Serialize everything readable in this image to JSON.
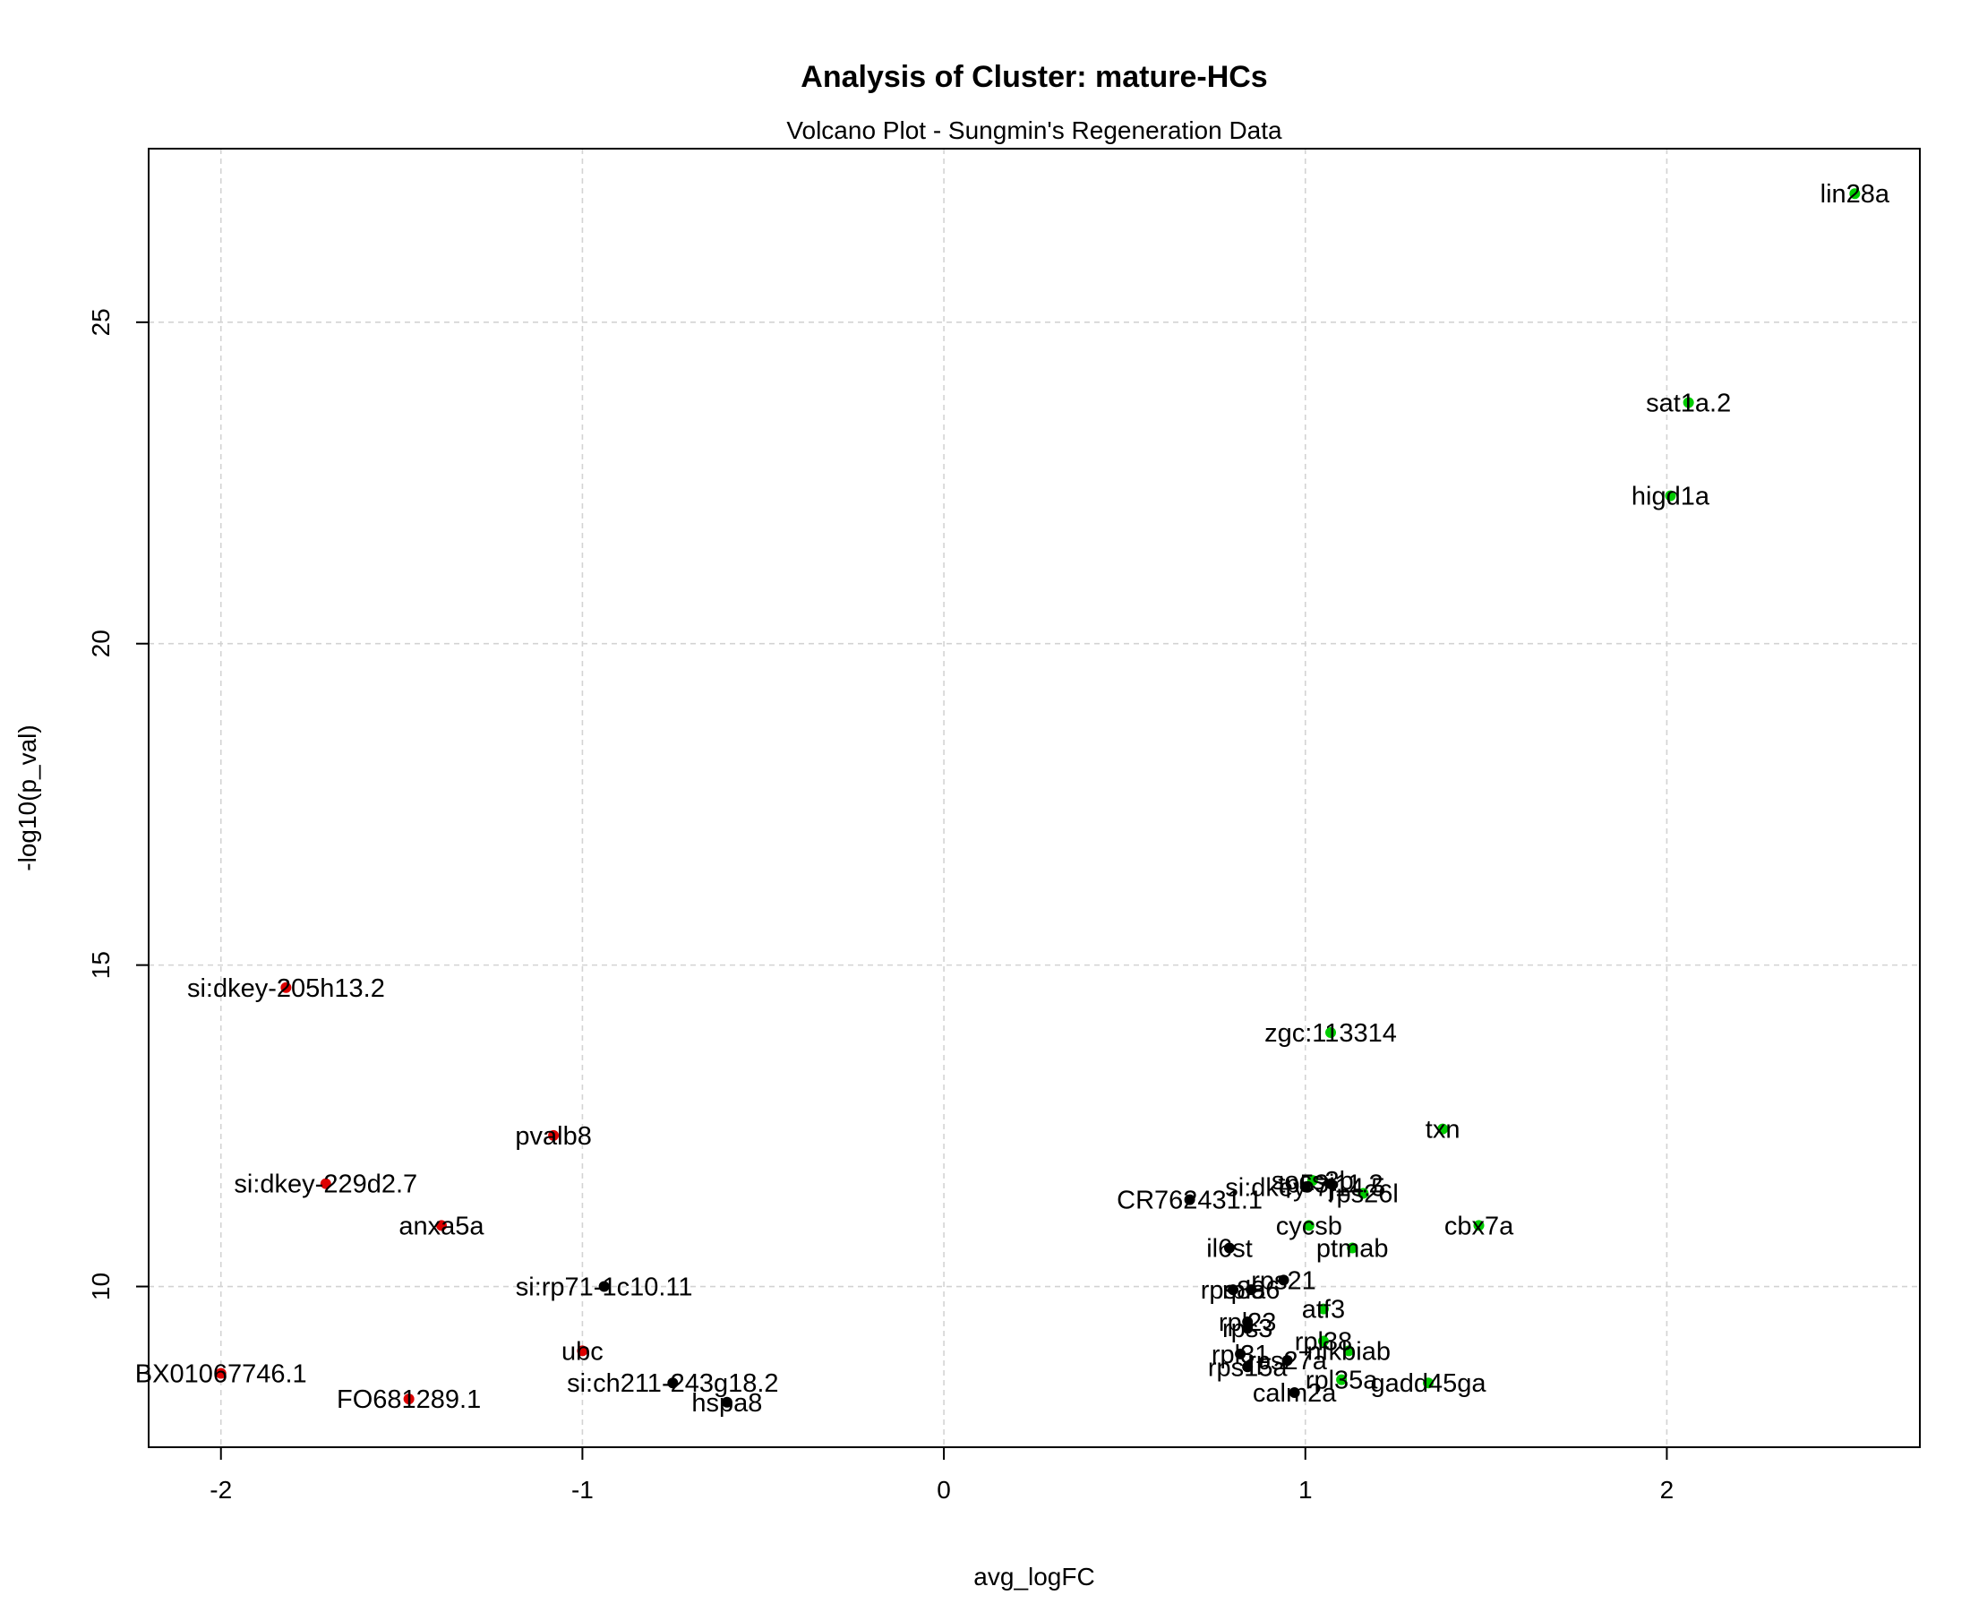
{
  "chart_data": {
    "type": "scatter",
    "title": "Analysis of Cluster: mature-HCs",
    "subtitle": "Volcano Plot - Sungmin's Regeneration Data",
    "xlabel": "avg_logFC",
    "ylabel": "-log10(p_val)",
    "xlim": [
      -2.2,
      2.7
    ],
    "ylim": [
      7.5,
      27.7
    ],
    "xticks": [
      -2,
      -1,
      0,
      1,
      2
    ],
    "yticks": [
      10,
      15,
      20,
      25
    ],
    "grid": true,
    "colors": {
      "up": "#00cc00",
      "down": "#dd0000",
      "other": "#000000"
    },
    "points": [
      {
        "label": "lin28a",
        "x": 2.52,
        "y": 27.0,
        "group": "up"
      },
      {
        "label": "sat1a.2",
        "x": 2.06,
        "y": 23.75,
        "group": "up"
      },
      {
        "label": "higd1a",
        "x": 2.01,
        "y": 22.3,
        "group": "up"
      },
      {
        "label": "zgc:113314",
        "x": 1.07,
        "y": 13.95,
        "group": "up"
      },
      {
        "label": "txn",
        "x": 1.38,
        "y": 12.45,
        "group": "up"
      },
      {
        "label": "cbx7a",
        "x": 1.48,
        "y": 10.95,
        "group": "up"
      },
      {
        "label": "cycsb",
        "x": 1.01,
        "y": 10.95,
        "group": "up"
      },
      {
        "label": "ptmab",
        "x": 1.13,
        "y": 10.6,
        "group": "up"
      },
      {
        "label": "socs3b",
        "x": 1.02,
        "y": 11.65,
        "group": "up"
      },
      {
        "label": "si:dkey-7j14.5",
        "x": 1.0,
        "y": 11.55,
        "group": "other"
      },
      {
        "label": "rps26l",
        "x": 1.16,
        "y": 11.45,
        "group": "up"
      },
      {
        "label": "tp53i11.2",
        "x": 1.07,
        "y": 11.6,
        "group": "other"
      },
      {
        "label": "CR762431.1",
        "x": 0.68,
        "y": 11.35,
        "group": "other"
      },
      {
        "label": "il6st",
        "x": 0.79,
        "y": 10.6,
        "group": "other"
      },
      {
        "label": "rps21",
        "x": 0.94,
        "y": 10.1,
        "group": "other"
      },
      {
        "label": "rpl36",
        "x": 0.85,
        "y": 9.95,
        "group": "other"
      },
      {
        "label": "rps8a",
        "x": 0.8,
        "y": 9.95,
        "group": "other"
      },
      {
        "label": "atf3",
        "x": 1.05,
        "y": 9.65,
        "group": "up"
      },
      {
        "label": "rpl23",
        "x": 0.84,
        "y": 9.45,
        "group": "other"
      },
      {
        "label": "rps3",
        "x": 0.84,
        "y": 9.35,
        "group": "other"
      },
      {
        "label": "rpl38",
        "x": 1.05,
        "y": 9.15,
        "group": "up"
      },
      {
        "label": "rpl31",
        "x": 0.82,
        "y": 8.95,
        "group": "other"
      },
      {
        "label": "rps27a",
        "x": 0.95,
        "y": 8.85,
        "group": "other"
      },
      {
        "label": "rps15a",
        "x": 0.84,
        "y": 8.75,
        "group": "other"
      },
      {
        "label": "nfkbiab",
        "x": 1.12,
        "y": 9.0,
        "group": "up"
      },
      {
        "label": "rpl35a",
        "x": 1.1,
        "y": 8.55,
        "group": "up"
      },
      {
        "label": "gadd45ga",
        "x": 1.34,
        "y": 8.5,
        "group": "up"
      },
      {
        "label": "calm2a",
        "x": 0.97,
        "y": 8.35,
        "group": "other"
      },
      {
        "label": "si:dkey-205h13.2",
        "x": -1.82,
        "y": 14.65,
        "group": "down"
      },
      {
        "label": "pvalb8",
        "x": -1.08,
        "y": 12.35,
        "group": "down"
      },
      {
        "label": "si:dkey-229d2.7",
        "x": -1.71,
        "y": 11.6,
        "group": "down"
      },
      {
        "label": "anxa5a",
        "x": -1.39,
        "y": 10.95,
        "group": "down"
      },
      {
        "label": "si:rp71-1c10.11",
        "x": -0.94,
        "y": 10.0,
        "group": "other"
      },
      {
        "label": "ubc",
        "x": -1.0,
        "y": 9.0,
        "group": "down"
      },
      {
        "label": "BX01067746.1",
        "x": -2.0,
        "y": 8.65,
        "group": "down"
      },
      {
        "label": "si:ch211-243g18.2",
        "x": -0.75,
        "y": 8.5,
        "group": "other"
      },
      {
        "label": "FO681289.1",
        "x": -1.48,
        "y": 8.25,
        "group": "down"
      },
      {
        "label": "hspa8",
        "x": -0.6,
        "y": 8.2,
        "group": "other"
      }
    ]
  }
}
